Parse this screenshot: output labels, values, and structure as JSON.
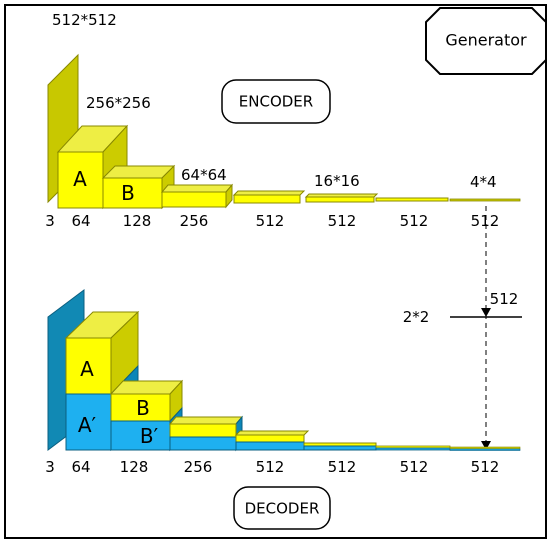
{
  "title": "Generator",
  "encoder": {
    "label": "ENCODER",
    "input_channels": "3",
    "block_a": "A",
    "block_b": "B",
    "sizes": [
      "512*512",
      "256*256",
      "64*64",
      "16*16",
      "4*4"
    ],
    "channels": [
      "64",
      "128",
      "256",
      "512",
      "512",
      "512",
      "512"
    ]
  },
  "bottleneck": {
    "size": "2*2",
    "channels": "512"
  },
  "decoder": {
    "label": "DECODER",
    "input_channels": "3",
    "block_a": "A",
    "block_a_prime": "A′",
    "block_b": "B",
    "block_b_prime": "B′",
    "channels": [
      "64",
      "128",
      "256",
      "512",
      "512",
      "512",
      "512"
    ]
  },
  "colors": {
    "encoder_front": "#ffff00",
    "encoder_side": "#cccc00",
    "encoder_top": "#eeee44",
    "input_plate_encoder": "#c8c800",
    "decoder_front": "#1eb0f0",
    "decoder_side": "#0b86b8",
    "input_plate_decoder": "#1189b4",
    "border": "#000000"
  }
}
